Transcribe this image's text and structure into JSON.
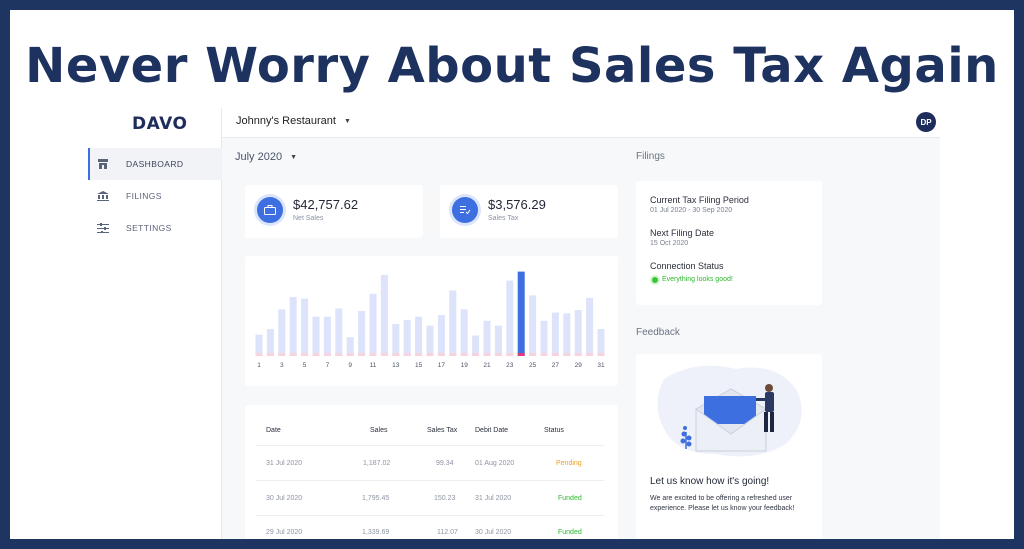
{
  "headline": "Never Worry About Sales Tax Again",
  "logo": "DAVO",
  "sidebar": {
    "items": [
      {
        "label": "DASHBOARD",
        "icon": "store-icon",
        "active": true
      },
      {
        "label": "FILINGS",
        "icon": "bank-icon",
        "active": false
      },
      {
        "label": "SETTINGS",
        "icon": "sliders-icon",
        "active": false
      }
    ]
  },
  "topbar": {
    "restaurant": "Johnny's Restaurant",
    "avatar": "DP"
  },
  "month": "July 2020",
  "stats": {
    "net_sales": {
      "value": "$42,757.62",
      "label": "Net Sales",
      "icon": "briefcase-icon"
    },
    "sales_tax": {
      "value": "$3,576.29",
      "label": "Sales Tax",
      "icon": "receipt-icon"
    }
  },
  "chart_data": {
    "type": "bar",
    "x": [
      1,
      2,
      3,
      4,
      5,
      6,
      7,
      8,
      9,
      10,
      11,
      12,
      13,
      14,
      15,
      16,
      17,
      18,
      19,
      20,
      21,
      22,
      23,
      24,
      25,
      26,
      27,
      28,
      29,
      30,
      31
    ],
    "tick_labels": [
      "1",
      "3",
      "5",
      "7",
      "9",
      "11",
      "13",
      "15",
      "17",
      "19",
      "21",
      "23",
      "25",
      "27",
      "29",
      "31"
    ],
    "series": [
      {
        "values": [
          0.26,
          0.33,
          0.57,
          0.72,
          0.7,
          0.48,
          0.48,
          0.58,
          0.23,
          0.55,
          0.76,
          0.99,
          0.39,
          0.44,
          0.48,
          0.37,
          0.5,
          0.8,
          0.57,
          0.25,
          0.43,
          0.37,
          0.92,
          1.03,
          0.74,
          0.43,
          0.53,
          0.52,
          0.56,
          0.71,
          0.33
        ]
      }
    ],
    "highlight_index": 23,
    "colors": {
      "bar": "#dde3fa",
      "highlight": "#3d6fe0",
      "base": "#f7d3e0",
      "base_highlight": "#e0407a"
    }
  },
  "table": {
    "headers": [
      "Date",
      "Sales",
      "Sales Tax",
      "Debit Date",
      "Status"
    ],
    "rows": [
      {
        "date": "31 Jul 2020",
        "sales": "1,187.02",
        "tax": "99.34",
        "debit": "01 Aug 2020",
        "status": "Pending"
      },
      {
        "date": "30 Jul 2020",
        "sales": "1,795.45",
        "tax": "150.23",
        "debit": "31 Jul 2020",
        "status": "Funded"
      },
      {
        "date": "29 Jul 2020",
        "sales": "1,339.69",
        "tax": "112.07",
        "debit": "30 Jul 2020",
        "status": "Funded"
      }
    ]
  },
  "filings": {
    "title": "Filings",
    "current_label": "Current Tax Filing Period",
    "current_value": "01 Jul 2020 - 30 Sep 2020",
    "next_label": "Next Filing Date",
    "next_value": "15 Oct 2020",
    "connection_label": "Connection Status",
    "connection_value": "Everything looks good!"
  },
  "feedback": {
    "title": "Feedback",
    "heading": "Let us know how it's going!",
    "body": "We are excited to be offering a refreshed user experience. Please let us know your feedback!"
  }
}
